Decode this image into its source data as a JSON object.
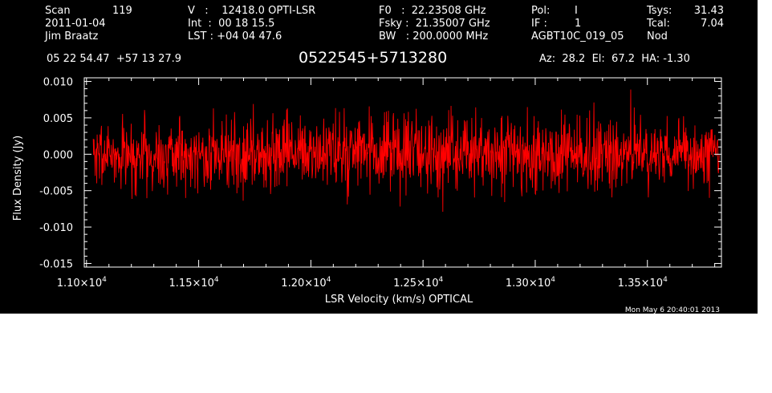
{
  "header": {
    "col1": {
      "scan_label": "Scan",
      "scan_value": "119",
      "date": "2011-01-04",
      "observer": "Jim Braatz"
    },
    "col2": {
      "v_line": "V   :    12418.0 OPTI-LSR",
      "int_line": "Int  :  00 18 15.5",
      "lst_line": "LST : +04 04 47.6"
    },
    "col3": {
      "f0_line": "F0   :  22.23508 GHz",
      "fsky_line": "Fsky :  21.35007 GHz",
      "bw_line": "BW   : 200.0000 MHz"
    },
    "col4": {
      "pol_label": "Pol:",
      "pol_value": "I",
      "if_label": "IF :",
      "if_value": "1",
      "project": "AGBT10C_019_05"
    },
    "col5": {
      "tsys_label": "Tsys:",
      "tsys_value": "31.43",
      "tcal_label": "Tcal:",
      "tcal_value": "7.04",
      "mode": "Nod"
    },
    "coords": "05 22 54.47  +57 13 27.9",
    "source": "0522545+5713280",
    "az_el_ha": "Az:  28.2  El:  67.2  HA: -1.30",
    "timestamp": "Mon May  6 20:40:01 2013"
  },
  "colors": {
    "background": "#000000",
    "foreground": "#ffffff",
    "trace": "#ff0000"
  },
  "chart_data": {
    "type": "line",
    "title": "",
    "xlabel": "LSR Velocity (km/s) OPTICAL",
    "ylabel": "Flux Density (Jy)",
    "xlim": [
      10990,
      13830
    ],
    "ylim": [
      -0.0155,
      0.0105
    ],
    "x_ticks": [
      {
        "value": 11000,
        "mantissa": "1.10",
        "exp": "4"
      },
      {
        "value": 11500,
        "mantissa": "1.15",
        "exp": "4"
      },
      {
        "value": 12000,
        "mantissa": "1.20",
        "exp": "4"
      },
      {
        "value": 12500,
        "mantissa": "1.25",
        "exp": "4"
      },
      {
        "value": 13000,
        "mantissa": "1.30",
        "exp": "4"
      },
      {
        "value": 13500,
        "mantissa": "1.35",
        "exp": "4"
      }
    ],
    "y_ticks": [
      {
        "value": 0.01,
        "label": "0.010"
      },
      {
        "value": 0.005,
        "label": "0.005"
      },
      {
        "value": 0.0,
        "label": "0.000"
      },
      {
        "value": -0.005,
        "label": "-0.005"
      },
      {
        "value": -0.01,
        "label": "-0.010"
      },
      {
        "value": -0.015,
        "label": "-0.015"
      }
    ],
    "series": [
      {
        "x_start": 11030,
        "x_end": 13820,
        "n_points": 1600,
        "mean": 0.0,
        "rms": 0.0025,
        "y_max": 0.0098,
        "y_min": -0.0108,
        "noise_seed": 7
      }
    ],
    "grid": false
  }
}
